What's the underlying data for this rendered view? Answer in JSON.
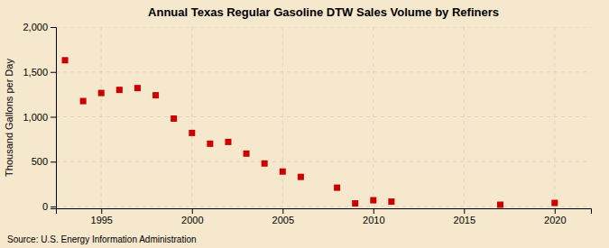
{
  "chart_data": {
    "type": "scatter",
    "title": "Annual Texas Regular Gasoline DTW Sales Volume by Refiners",
    "ylabel": "Thousand Gallons per Day",
    "annotations": [
      "Source: U.S. Energy Information Administration"
    ],
    "x": [
      1993,
      1994,
      1995,
      1996,
      1997,
      1998,
      1999,
      2000,
      2001,
      2002,
      2003,
      2004,
      2005,
      2006,
      2008,
      2009,
      2010,
      2011,
      2017,
      2020
    ],
    "values": [
      1630,
      1175,
      1265,
      1300,
      1320,
      1240,
      980,
      820,
      700,
      720,
      590,
      480,
      390,
      330,
      210,
      35,
      70,
      55,
      20,
      40
    ],
    "color": "#cc0000",
    "marker": "square",
    "xlim": [
      1992.5,
      2022
    ],
    "ylim": [
      -20,
      2000
    ],
    "xticks": [
      1995,
      2000,
      2005,
      2010,
      2015,
      2020
    ],
    "yticks": [
      0,
      500,
      {
        "value": 1000,
        "label": "1,000"
      },
      {
        "value": 1500,
        "label": "1,500"
      },
      {
        "value": 2000,
        "label": "2,000"
      }
    ],
    "grid": true
  }
}
